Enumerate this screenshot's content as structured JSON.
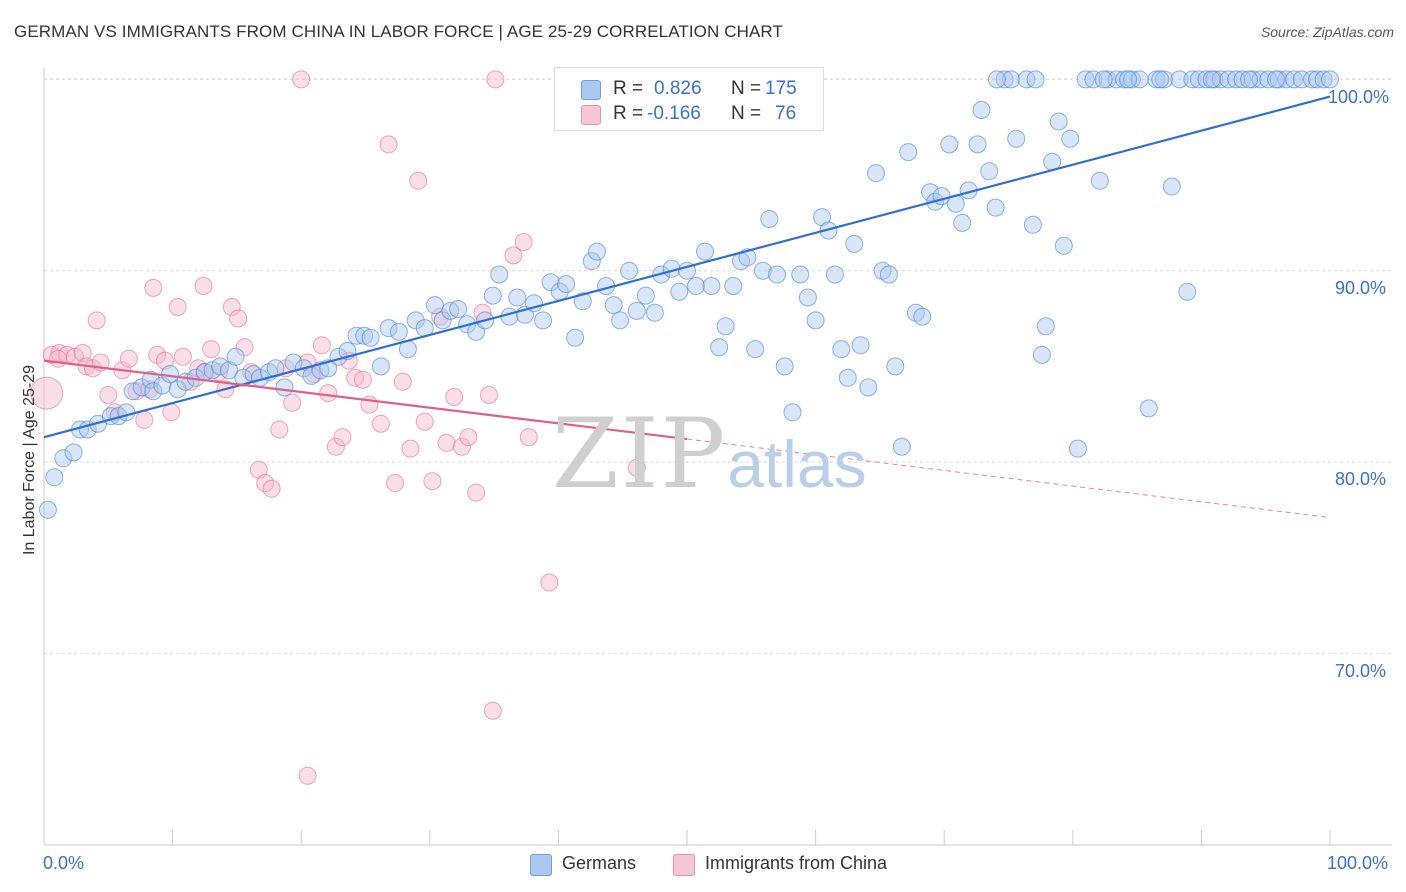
{
  "title": "GERMAN VS IMMIGRANTS FROM CHINA IN LABOR FORCE | AGE 25-29 CORRELATION CHART",
  "source": "Source: ZipAtlas.com",
  "watermark": {
    "zip": "ZIP",
    "atlas": "atlas"
  },
  "legend_top": [
    {
      "r_label": "R =",
      "r_value": "0.826",
      "n_label": "N =",
      "n_value": "175",
      "color": "#aac8f0"
    },
    {
      "r_label": "R =",
      "r_value": "-0.166",
      "n_label": "N =",
      "n_value": "76",
      "color": "#f6b8cb"
    }
  ],
  "legend_bottom": [
    {
      "label": "Germans",
      "color": "#aac8f0"
    },
    {
      "label": "Immigrants from China",
      "color": "#f6b8cb"
    }
  ],
  "x_axis": {
    "min_label": "0.0%",
    "max_label": "100.0%"
  },
  "y_axis": {
    "label": "In Labor Force | Age 25-29",
    "ticks": [
      "100.0%",
      "90.0%",
      "80.0%",
      "70.0%"
    ]
  },
  "chart_data": {
    "type": "scatter",
    "title": "GERMAN VS IMMIGRANTS FROM CHINA IN LABOR FORCE | AGE 25-29 CORRELATION CHART",
    "xlabel": "",
    "ylabel": "In Labor Force | Age 25-29",
    "xlim": [
      0,
      100
    ],
    "ylim": [
      60,
      102
    ],
    "y_ticks": [
      70,
      80,
      90,
      100
    ],
    "grid": true,
    "legend_position": "top-center",
    "series": [
      {
        "name": "Germans",
        "color": "#3a78d4",
        "fill": "#aac8f0",
        "r": 0.826,
        "n": 175,
        "trend": {
          "x": [
            0,
            100
          ],
          "y": [
            81.3,
            99.1
          ],
          "style": "solid"
        },
        "points": [
          [
            0.3,
            77.5
          ],
          [
            0.8,
            79.2
          ],
          [
            1.5,
            80.2
          ],
          [
            2.3,
            80.5
          ],
          [
            2.8,
            81.7
          ],
          [
            3.4,
            81.7
          ],
          [
            4.2,
            82
          ],
          [
            5.2,
            82.4
          ],
          [
            5.8,
            82.4
          ],
          [
            6.4,
            82.6
          ],
          [
            6.9,
            83.7
          ],
          [
            7.6,
            83.9
          ],
          [
            8.3,
            84.3
          ],
          [
            8.5,
            83.7
          ],
          [
            9.2,
            84
          ],
          [
            9.8,
            84.6
          ],
          [
            10.4,
            83.8
          ],
          [
            11,
            84.2
          ],
          [
            11.8,
            84.4
          ],
          [
            12.5,
            84.7
          ],
          [
            13.1,
            84.8
          ],
          [
            13.7,
            85
          ],
          [
            14.4,
            84.8
          ],
          [
            14.9,
            85.5
          ],
          [
            15.5,
            84.4
          ],
          [
            16.3,
            84.6
          ],
          [
            16.8,
            84.4
          ],
          [
            17.5,
            84.7
          ],
          [
            18,
            84.9
          ],
          [
            18.7,
            83.9
          ],
          [
            19.4,
            85.2
          ],
          [
            20.2,
            84.9
          ],
          [
            20.8,
            84.5
          ],
          [
            21.5,
            84.8
          ],
          [
            22.1,
            84.9
          ],
          [
            22.9,
            85.5
          ],
          [
            23.6,
            85.8
          ],
          [
            24.3,
            86.6
          ],
          [
            24.9,
            86.6
          ],
          [
            25.4,
            86.5
          ],
          [
            26.2,
            85
          ],
          [
            26.8,
            87
          ],
          [
            27.6,
            86.8
          ],
          [
            28.3,
            85.9
          ],
          [
            28.9,
            87.4
          ],
          [
            29.6,
            87
          ],
          [
            30.4,
            88.2
          ],
          [
            31,
            87.4
          ],
          [
            31.6,
            87.9
          ],
          [
            32.2,
            88
          ],
          [
            32.9,
            87.2
          ],
          [
            33.6,
            86.8
          ],
          [
            34.3,
            87.4
          ],
          [
            34.9,
            88.7
          ],
          [
            35.4,
            89.8
          ],
          [
            36.2,
            87.6
          ],
          [
            36.8,
            88.6
          ],
          [
            37.4,
            87.7
          ],
          [
            38.1,
            88.3
          ],
          [
            38.8,
            87.4
          ],
          [
            39.4,
            89.4
          ],
          [
            40.1,
            88.9
          ],
          [
            40.6,
            89.3
          ],
          [
            41.3,
            86.5
          ],
          [
            41.9,
            88.4
          ],
          [
            42.6,
            90.5
          ],
          [
            43,
            91
          ],
          [
            43.7,
            89.2
          ],
          [
            44.3,
            88.2
          ],
          [
            44.8,
            87.4
          ],
          [
            45.5,
            90
          ],
          [
            46.1,
            87.9
          ],
          [
            46.8,
            88.7
          ],
          [
            47.5,
            87.8
          ],
          [
            48,
            89.8
          ],
          [
            48.8,
            90.1
          ],
          [
            49.4,
            88.9
          ],
          [
            50,
            90
          ],
          [
            50.7,
            89.2
          ],
          [
            51.4,
            91
          ],
          [
            51.9,
            89.2
          ],
          [
            52.5,
            86
          ],
          [
            53,
            87.1
          ],
          [
            53.6,
            89.2
          ],
          [
            54.2,
            90.5
          ],
          [
            54.7,
            90.7
          ],
          [
            55.3,
            85.9
          ],
          [
            55.9,
            90
          ],
          [
            56.4,
            92.7
          ],
          [
            57,
            89.8
          ],
          [
            57.6,
            85
          ],
          [
            58.2,
            82.6
          ],
          [
            58.8,
            89.8
          ],
          [
            59.4,
            88.6
          ],
          [
            60,
            87.4
          ],
          [
            60.5,
            92.8
          ],
          [
            61,
            92.1
          ],
          [
            61.5,
            89.8
          ],
          [
            62,
            85.9
          ],
          [
            62.5,
            84.4
          ],
          [
            63,
            91.4
          ],
          [
            63.5,
            86.1
          ],
          [
            64.1,
            83.9
          ],
          [
            64.7,
            95.1
          ],
          [
            65.2,
            90
          ],
          [
            65.7,
            89.8
          ],
          [
            66.2,
            85
          ],
          [
            66.7,
            80.8
          ],
          [
            67.2,
            96.2
          ],
          [
            67.8,
            87.8
          ],
          [
            68.3,
            87.6
          ],
          [
            68.9,
            94.1
          ],
          [
            69.3,
            93.6
          ],
          [
            69.8,
            93.9
          ],
          [
            70.4,
            96.6
          ],
          [
            70.9,
            93.5
          ],
          [
            71.4,
            92.5
          ],
          [
            71.9,
            94.2
          ],
          [
            72.6,
            96.6
          ],
          [
            72.9,
            98.4
          ],
          [
            73.5,
            95.2
          ],
          [
            74,
            93.3
          ],
          [
            74.7,
            100
          ],
          [
            75.2,
            100
          ],
          [
            75.6,
            96.9
          ],
          [
            76.4,
            100
          ],
          [
            76.9,
            92.4
          ],
          [
            77.6,
            85.6
          ],
          [
            77.9,
            87.1
          ],
          [
            78.4,
            95.7
          ],
          [
            78.9,
            97.8
          ],
          [
            79.3,
            91.3
          ],
          [
            79.8,
            96.9
          ],
          [
            80.4,
            80.7
          ],
          [
            81,
            100
          ],
          [
            81.6,
            100
          ],
          [
            82.1,
            94.7
          ],
          [
            82.7,
            100
          ],
          [
            83.4,
            100
          ],
          [
            84,
            100
          ],
          [
            84.6,
            100
          ],
          [
            85.2,
            100
          ],
          [
            85.9,
            82.8
          ],
          [
            86.5,
            100
          ],
          [
            87.1,
            100
          ],
          [
            87.7,
            94.4
          ],
          [
            88.3,
            100
          ],
          [
            88.9,
            88.9
          ],
          [
            89.3,
            100
          ],
          [
            89.8,
            100
          ],
          [
            90.4,
            100
          ],
          [
            91,
            100
          ],
          [
            91.5,
            100
          ],
          [
            92.1,
            100
          ],
          [
            92.7,
            100
          ],
          [
            93.2,
            100
          ],
          [
            94,
            100
          ],
          [
            94.6,
            100
          ],
          [
            95.2,
            100
          ],
          [
            96,
            100
          ],
          [
            96.6,
            100
          ],
          [
            97.2,
            100
          ],
          [
            97.8,
            100
          ],
          [
            98.6,
            100
          ],
          [
            99,
            100
          ],
          [
            99.5,
            100
          ],
          [
            100,
            100
          ],
          [
            95.8,
            100
          ],
          [
            93.7,
            100
          ],
          [
            90.8,
            100
          ],
          [
            86.8,
            100
          ],
          [
            84.3,
            100
          ],
          [
            82.4,
            100
          ],
          [
            77.1,
            100
          ],
          [
            74.1,
            100
          ]
        ]
      },
      {
        "name": "Immigrants from China",
        "color": "#e8608a",
        "fill": "#f6b8cb",
        "r": -0.166,
        "n": 76,
        "trend": {
          "x": [
            0,
            100
          ],
          "y": [
            85.3,
            77.1
          ],
          "solid_until": 50,
          "style": "solid-then-dashed"
        },
        "points": [
          [
            0.2,
            83.6
          ],
          [
            0.6,
            85.6
          ],
          [
            1.2,
            85.7
          ],
          [
            1.8,
            85.6
          ],
          [
            2.4,
            85.5
          ],
          [
            3,
            85.7
          ],
          [
            3.3,
            85
          ],
          [
            3.8,
            84.9
          ],
          [
            4.4,
            85.2
          ],
          [
            5,
            83.5
          ],
          [
            5.5,
            82.6
          ],
          [
            6.1,
            84.8
          ],
          [
            6.6,
            85.4
          ],
          [
            7.2,
            83.7
          ],
          [
            7.8,
            82.2
          ],
          [
            8.2,
            83.8
          ],
          [
            8.8,
            85.6
          ],
          [
            9.4,
            85.3
          ],
          [
            9.9,
            82.6
          ],
          [
            10.4,
            88.1
          ],
          [
            10.8,
            85.5
          ],
          [
            11.4,
            84.2
          ],
          [
            12,
            84.9
          ],
          [
            12.5,
            84.7
          ],
          [
            13,
            85.9
          ],
          [
            13.6,
            84.7
          ],
          [
            14.1,
            83.8
          ],
          [
            14.6,
            88.1
          ],
          [
            15.1,
            87.5
          ],
          [
            15.6,
            86
          ],
          [
            16.1,
            84.7
          ],
          [
            16.7,
            79.6
          ],
          [
            17.2,
            78.9
          ],
          [
            17.7,
            78.6
          ],
          [
            18.3,
            81.7
          ],
          [
            18.8,
            84.9
          ],
          [
            19.3,
            83.1
          ],
          [
            20,
            100
          ],
          [
            20.5,
            85.2
          ],
          [
            21,
            84.6
          ],
          [
            21.6,
            86.1
          ],
          [
            22.1,
            83.6
          ],
          [
            22.7,
            80.8
          ],
          [
            23.2,
            81.3
          ],
          [
            23.7,
            85.3
          ],
          [
            24.2,
            84.4
          ],
          [
            24.8,
            84.3
          ],
          [
            25.3,
            83
          ],
          [
            26.2,
            82
          ],
          [
            26.8,
            96.6
          ],
          [
            27.3,
            78.9
          ],
          [
            27.9,
            84.2
          ],
          [
            28.5,
            80.7
          ],
          [
            29.1,
            94.7
          ],
          [
            29.6,
            82.1
          ],
          [
            30.2,
            79
          ],
          [
            30.8,
            87.6
          ],
          [
            31.3,
            81
          ],
          [
            31.9,
            83.4
          ],
          [
            32.5,
            80.8
          ],
          [
            33,
            81.3
          ],
          [
            33.6,
            78.4
          ],
          [
            34.1,
            87.8
          ],
          [
            34.6,
            83.5
          ],
          [
            35.1,
            100
          ],
          [
            36.5,
            90.8
          ],
          [
            37.3,
            91.5
          ],
          [
            37.7,
            81.3
          ],
          [
            39.3,
            73.7
          ],
          [
            34.9,
            67
          ],
          [
            20.5,
            63.6
          ],
          [
            46.1,
            79.7
          ],
          [
            8.5,
            89.1
          ],
          [
            4.1,
            87.4
          ],
          [
            12.4,
            89.2
          ],
          [
            1.1,
            85.4
          ]
        ]
      }
    ]
  }
}
